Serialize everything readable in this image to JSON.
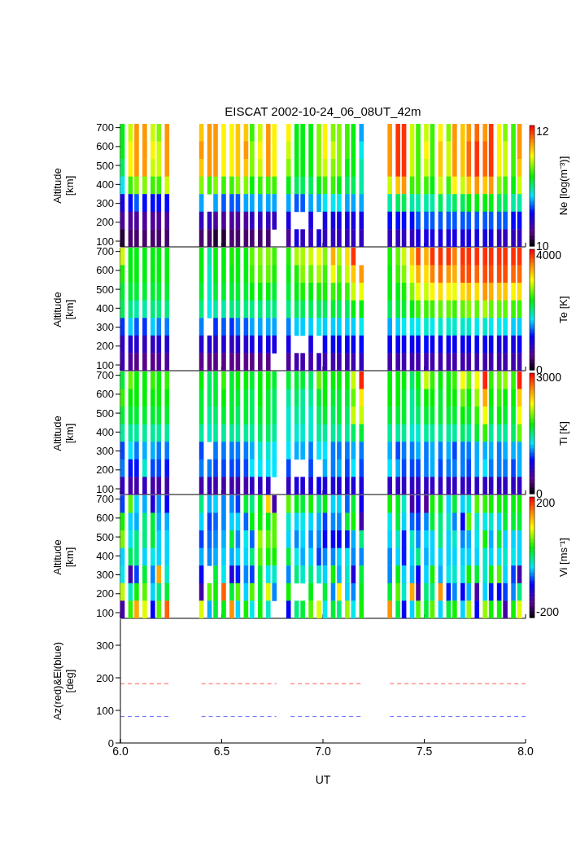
{
  "chart_data": [
    {
      "type": "heatmap",
      "title": "EISCAT 2002-10-24_06_08UT_42m",
      "ylabel": "Altitude [km]",
      "clabel": "Ne [log(m⁻³)]",
      "tick_labels": "y",
      "xlim": [
        6,
        8
      ],
      "xticks": [
        6,
        6.5,
        7,
        7.5,
        8
      ],
      "ylim": [
        70,
        720
      ],
      "yticks": [
        100,
        200,
        300,
        400,
        500,
        600,
        700
      ],
      "clim": [
        10,
        12.1
      ],
      "cticks": [
        10,
        12
      ],
      "x": [
        6.01,
        6.05,
        6.08,
        6.12,
        6.16,
        6.19,
        6.23,
        6.26,
        6.3,
        6.33,
        6.37,
        6.4,
        6.44,
        6.47,
        6.51,
        6.55,
        6.58,
        6.62,
        6.65,
        6.69,
        6.73,
        6.76,
        6.8,
        6.83,
        6.87,
        6.9,
        6.94,
        6.98,
        7.01,
        7.05,
        7.08,
        7.12,
        7.15,
        7.19,
        7.22,
        7.26,
        7.29,
        7.33,
        7.37,
        7.4,
        7.44,
        7.47,
        7.51,
        7.54,
        7.58,
        7.62,
        7.65,
        7.69,
        7.72,
        7.76,
        7.8,
        7.83,
        7.87,
        7.9,
        7.94,
        7.97
      ],
      "cells": [
        [
          11.2,
          11.5,
          11.8,
          11.8,
          11.5,
          11.4,
          11.8,
          null,
          null,
          null,
          null,
          11.7,
          11.8,
          11.8,
          11.6,
          11.6,
          11.7,
          11.7,
          11.3,
          11.5,
          11.8,
          11.6,
          null,
          11.6,
          11.2,
          11.2,
          11.2,
          11.4,
          11.6,
          11.4,
          11.4,
          11.3,
          11.2,
          10.8,
          null,
          null,
          null,
          11.8,
          12.0,
          12.0,
          11.5,
          11.3,
          11.5,
          11.3,
          11.6,
          11.4,
          11.8,
          11.7,
          11.8,
          11.9,
          11.8,
          12.0,
          11.6,
          11.4,
          11.3,
          11.8
        ],
        [
          11.2,
          11.6,
          11.8,
          11.8,
          11.6,
          11.5,
          11.8,
          null,
          null,
          null,
          null,
          11.8,
          11.8,
          11.8,
          11.6,
          11.6,
          11.7,
          11.8,
          11.4,
          11.6,
          11.8,
          11.6,
          null,
          11.5,
          11.2,
          11.2,
          11.2,
          11.4,
          11.6,
          11.5,
          11.4,
          11.3,
          11.2,
          10.9,
          null,
          null,
          null,
          11.8,
          12.0,
          12.0,
          11.5,
          11.3,
          11.6,
          11.3,
          11.7,
          11.5,
          11.8,
          11.7,
          11.9,
          12.0,
          11.9,
          12.0,
          11.6,
          11.5,
          11.3,
          11.8
        ],
        [
          11.1,
          11.6,
          11.8,
          11.8,
          11.5,
          11.5,
          11.8,
          null,
          null,
          null,
          null,
          11.7,
          11.8,
          11.8,
          11.6,
          11.6,
          11.7,
          11.7,
          11.4,
          11.5,
          11.8,
          11.6,
          null,
          11.4,
          11.2,
          11.2,
          11.2,
          11.4,
          11.5,
          11.4,
          11.4,
          11.2,
          11.2,
          11.0,
          null,
          null,
          null,
          11.8,
          12.0,
          12.0,
          11.5,
          11.3,
          11.5,
          11.3,
          11.7,
          11.5,
          11.8,
          11.7,
          11.9,
          12.0,
          11.9,
          12.0,
          11.6,
          11.5,
          11.3,
          11.7
        ],
        [
          10.9,
          11.3,
          11.4,
          11.4,
          11.3,
          11.3,
          11.5,
          null,
          null,
          null,
          null,
          11.4,
          11.3,
          11.4,
          11.3,
          11.3,
          11.4,
          11.4,
          11.2,
          11.3,
          11.3,
          11.3,
          null,
          11.2,
          11.1,
          11.1,
          11.1,
          11.2,
          11.3,
          11.3,
          11.2,
          11.1,
          11.1,
          11.0,
          null,
          null,
          null,
          11.5,
          11.7,
          11.8,
          11.3,
          11.3,
          11.3,
          11.2,
          11.5,
          11.3,
          11.6,
          11.5,
          11.7,
          11.8,
          11.7,
          11.8,
          11.4,
          11.3,
          11.2,
          11.5
        ],
        [
          10.5,
          10.6,
          10.7,
          10.6,
          10.6,
          10.6,
          10.6,
          null,
          null,
          null,
          null,
          10.8,
          null,
          10.8,
          10.7,
          10.7,
          10.7,
          10.8,
          10.8,
          10.8,
          10.8,
          10.8,
          null,
          10.8,
          10.7,
          10.7,
          10.8,
          10.8,
          10.9,
          10.9,
          10.9,
          10.8,
          10.8,
          10.8,
          null,
          null,
          null,
          11.0,
          11.1,
          11.1,
          11.0,
          11.0,
          11.0,
          11.0,
          11.1,
          11.0,
          11.1,
          11.1,
          11.2,
          11.2,
          11.2,
          11.2,
          11.1,
          11.1,
          11.0,
          11.0
        ],
        [
          10.3,
          10.3,
          10.3,
          10.3,
          10.3,
          10.3,
          10.3,
          null,
          null,
          null,
          null,
          10.4,
          10.4,
          10.3,
          10.3,
          10.3,
          10.3,
          10.3,
          10.4,
          10.4,
          10.4,
          10.4,
          null,
          10.5,
          null,
          null,
          10.5,
          null,
          10.5,
          10.5,
          10.5,
          10.5,
          10.5,
          10.5,
          null,
          null,
          null,
          10.6,
          10.6,
          10.6,
          10.6,
          10.7,
          10.7,
          10.7,
          10.7,
          10.7,
          10.7,
          10.7,
          10.7,
          10.7,
          10.7,
          10.7,
          10.7,
          10.7,
          10.6,
          10.6
        ],
        [
          10.1,
          10.2,
          10.2,
          10.2,
          10.2,
          10.2,
          10.2,
          null,
          null,
          null,
          null,
          10.2,
          10.2,
          10.1,
          10.1,
          10.2,
          10.2,
          10.2,
          10.2,
          10.2,
          10.2,
          null,
          null,
          10.3,
          10.5,
          10.4,
          10.4,
          10.5,
          10.4,
          10.4,
          10.4,
          10.4,
          10.4,
          10.4,
          null,
          null,
          null,
          10.4,
          10.4,
          10.4,
          10.4,
          10.5,
          10.5,
          10.5,
          10.5,
          10.5,
          10.5,
          10.5,
          10.5,
          10.5,
          10.5,
          10.5,
          10.4,
          10.4,
          10.4,
          10.4
        ]
      ]
    },
    {
      "type": "heatmap",
      "ylabel": "Altitude [km]",
      "clabel": "Te [K]",
      "tick_labels": "y",
      "xlim": [
        6,
        8
      ],
      "xticks": [
        6,
        6.5,
        7,
        7.5,
        8
      ],
      "ylim": [
        70,
        720
      ],
      "yticks": [
        100,
        200,
        300,
        400,
        500,
        600,
        700
      ],
      "clim": [
        0,
        4200
      ],
      "cticks": [
        0,
        4000
      ],
      "x": [
        6.01,
        6.05,
        6.08,
        6.12,
        6.16,
        6.19,
        6.23,
        6.26,
        6.3,
        6.33,
        6.37,
        6.4,
        6.44,
        6.47,
        6.51,
        6.55,
        6.58,
        6.62,
        6.65,
        6.69,
        6.73,
        6.76,
        6.8,
        6.83,
        6.87,
        6.9,
        6.94,
        6.98,
        7.01,
        7.05,
        7.08,
        7.12,
        7.15,
        7.19,
        7.22,
        7.26,
        7.29,
        7.33,
        7.37,
        7.4,
        7.44,
        7.47,
        7.51,
        7.54,
        7.58,
        7.62,
        7.65,
        7.69,
        7.72,
        7.76,
        7.8,
        7.83,
        7.87,
        7.9,
        7.94,
        7.97
      ],
      "cells": [
        [
          3000,
          2400,
          2400,
          2400,
          2400,
          2400,
          2400,
          null,
          null,
          null,
          null,
          2400,
          2000,
          2400,
          2400,
          2500,
          2400,
          2400,
          2700,
          2800,
          2800,
          2600,
          null,
          2500,
          2900,
          2900,
          3000,
          3100,
          2800,
          3500,
          2900,
          3300,
          4000,
          null,
          null,
          null,
          null,
          2500,
          2700,
          3000,
          3400,
          3900,
          3500,
          4000,
          4000,
          4000,
          3700,
          4000,
          4000,
          4000,
          4000,
          4000,
          4000,
          4000,
          4000,
          4000
        ],
        [
          2500,
          2400,
          2400,
          2400,
          2400,
          2400,
          2400,
          null,
          null,
          null,
          null,
          2400,
          1900,
          2400,
          2400,
          2400,
          2400,
          2400,
          2600,
          2700,
          2700,
          2500,
          null,
          2400,
          2500,
          2800,
          2700,
          2900,
          2600,
          3100,
          2700,
          3000,
          3400,
          3600,
          null,
          null,
          null,
          2400,
          2600,
          2800,
          3100,
          3500,
          3300,
          3700,
          3800,
          3600,
          3500,
          3900,
          3900,
          3800,
          3900,
          3900,
          3900,
          3900,
          3800,
          3800
        ],
        [
          2300,
          2300,
          2300,
          2300,
          2300,
          2300,
          2300,
          null,
          null,
          null,
          null,
          2300,
          1900,
          2300,
          2300,
          2300,
          2300,
          2300,
          2400,
          2400,
          2400,
          2300,
          null,
          2300,
          2400,
          2500,
          2400,
          2500,
          2500,
          2600,
          2500,
          2600,
          3000,
          3100,
          null,
          null,
          null,
          2400,
          2400,
          2500,
          2800,
          3100,
          3000,
          3200,
          3300,
          3200,
          3100,
          3300,
          3400,
          3300,
          3600,
          3500,
          3400,
          3400,
          3200,
          3300
        ],
        [
          2200,
          2100,
          2000,
          2000,
          2100,
          2100,
          2100,
          null,
          null,
          null,
          null,
          2100,
          1800,
          2000,
          2000,
          2100,
          2100,
          2100,
          2100,
          2100,
          2100,
          2100,
          null,
          2100,
          2200,
          2200,
          2200,
          2200,
          2200,
          2300,
          2200,
          2200,
          2400,
          2400,
          null,
          null,
          null,
          2200,
          2300,
          2300,
          2400,
          2600,
          2600,
          2600,
          2700,
          2700,
          2600,
          2700,
          2800,
          2700,
          2900,
          2700,
          2700,
          2700,
          2600,
          2600
        ],
        [
          1300,
          1700,
          1400,
          1300,
          1700,
          1500,
          1500,
          null,
          null,
          null,
          null,
          1500,
          null,
          1300,
          1400,
          1300,
          1500,
          1400,
          1600,
          1600,
          1600,
          1600,
          null,
          1500,
          1700,
          1700,
          1700,
          1800,
          1700,
          1700,
          1700,
          1700,
          1700,
          1800,
          null,
          null,
          null,
          1600,
          1700,
          1800,
          1800,
          1800,
          1900,
          1800,
          1900,
          1900,
          1900,
          1900,
          1900,
          1800,
          1900,
          1800,
          1800,
          1800,
          1700,
          1700
        ],
        [
          800,
          900,
          900,
          800,
          800,
          900,
          900,
          null,
          null,
          null,
          null,
          900,
          900,
          800,
          900,
          800,
          900,
          900,
          1000,
          1000,
          1000,
          1000,
          null,
          1000,
          null,
          null,
          1000,
          null,
          1100,
          1100,
          1100,
          1100,
          1100,
          1200,
          null,
          null,
          null,
          1100,
          1100,
          1100,
          1100,
          1100,
          1200,
          1100,
          1100,
          1100,
          1100,
          1100,
          1100,
          1100,
          1100,
          1100,
          1000,
          1000,
          1000,
          1100
        ],
        [
          700,
          600,
          500,
          500,
          500,
          600,
          600,
          null,
          null,
          null,
          null,
          500,
          500,
          500,
          500,
          500,
          500,
          500,
          500,
          500,
          500,
          null,
          null,
          600,
          700,
          700,
          700,
          800,
          700,
          700,
          700,
          700,
          700,
          800,
          null,
          null,
          null,
          700,
          700,
          700,
          700,
          700,
          700,
          700,
          700,
          700,
          700,
          700,
          700,
          700,
          700,
          700,
          700,
          700,
          700,
          700
        ]
      ]
    },
    {
      "type": "heatmap",
      "ylabel": "Altitude [km]",
      "clabel": "Ti [K]",
      "tick_labels": "y",
      "xlim": [
        6,
        8
      ],
      "xticks": [
        6,
        6.5,
        7,
        7.5,
        8
      ],
      "ylim": [
        70,
        720
      ],
      "yticks": [
        100,
        200,
        300,
        400,
        500,
        600,
        700
      ],
      "clim": [
        0,
        3100
      ],
      "cticks": [
        0,
        3000
      ],
      "x": [
        6.01,
        6.05,
        6.08,
        6.12,
        6.16,
        6.19,
        6.23,
        6.26,
        6.3,
        6.33,
        6.37,
        6.4,
        6.44,
        6.47,
        6.51,
        6.55,
        6.58,
        6.62,
        6.65,
        6.69,
        6.73,
        6.76,
        6.8,
        6.83,
        6.87,
        6.9,
        6.94,
        6.98,
        7.01,
        7.05,
        7.08,
        7.12,
        7.15,
        7.19,
        7.22,
        7.26,
        7.29,
        7.33,
        7.37,
        7.4,
        7.44,
        7.47,
        7.51,
        7.54,
        7.58,
        7.62,
        7.65,
        7.69,
        7.72,
        7.76,
        7.8,
        7.83,
        7.87,
        7.9,
        7.94,
        7.97
      ],
      "cells": [
        [
          1700,
          2000,
          1800,
          1800,
          1900,
          1800,
          1900,
          null,
          null,
          null,
          null,
          1800,
          1600,
          1700,
          1900,
          1700,
          1800,
          1800,
          1700,
          1800,
          1800,
          1700,
          null,
          1700,
          1700,
          1700,
          1600,
          2000,
          1800,
          1800,
          1800,
          1800,
          2200,
          3000,
          null,
          null,
          null,
          1800,
          1800,
          1800,
          1600,
          1800,
          2200,
          1900,
          1800,
          1800,
          1900,
          2300,
          2000,
          2300,
          3000,
          1900,
          2000,
          2100,
          1900,
          3000
        ],
        [
          1900,
          1800,
          1800,
          1800,
          1800,
          1800,
          1800,
          null,
          null,
          null,
          null,
          1700,
          1600,
          1700,
          1800,
          1700,
          1700,
          1700,
          1600,
          1800,
          1700,
          1600,
          null,
          1500,
          1600,
          1500,
          1500,
          1700,
          1800,
          1700,
          1700,
          1700,
          2000,
          2400,
          null,
          null,
          null,
          1800,
          1800,
          1700,
          1500,
          1700,
          1800,
          1800,
          1700,
          1800,
          1800,
          2000,
          1800,
          2100,
          2600,
          1800,
          1900,
          1800,
          1800,
          2500
        ],
        [
          1700,
          1700,
          1700,
          1700,
          1700,
          1700,
          1700,
          null,
          null,
          null,
          null,
          1700,
          1500,
          1600,
          1700,
          1700,
          1600,
          1700,
          1600,
          1700,
          1700,
          1600,
          null,
          1400,
          1500,
          1500,
          1400,
          1600,
          1700,
          1600,
          1700,
          1600,
          2200,
          2200,
          null,
          null,
          null,
          1700,
          1700,
          1700,
          1500,
          1600,
          1700,
          1700,
          1700,
          1700,
          1700,
          1800,
          1700,
          1900,
          2300,
          1700,
          1800,
          1700,
          1700,
          2300
        ],
        [
          1500,
          1500,
          1500,
          1500,
          1500,
          1500,
          1500,
          null,
          null,
          null,
          null,
          1500,
          1400,
          1500,
          1500,
          1500,
          1500,
          1500,
          1500,
          1600,
          1600,
          1500,
          null,
          1400,
          1400,
          1400,
          1400,
          1500,
          1500,
          1500,
          1500,
          1500,
          1600,
          1700,
          null,
          null,
          null,
          1500,
          1500,
          1500,
          1400,
          1400,
          1500,
          1500,
          1500,
          1500,
          1500,
          1600,
          1500,
          1700,
          1900,
          1500,
          1500,
          1500,
          1600,
          2000
        ],
        [
          1000,
          1300,
          1100,
          1200,
          1200,
          1100,
          1100,
          null,
          null,
          null,
          null,
          1000,
          null,
          1100,
          1100,
          1100,
          1100,
          1100,
          1200,
          1400,
          1400,
          1300,
          null,
          1300,
          1200,
          1200,
          1100,
          1300,
          1300,
          1100,
          1100,
          1100,
          1200,
          1100,
          null,
          null,
          null,
          1200,
          1000,
          1100,
          1100,
          1200,
          1100,
          1200,
          1100,
          1200,
          1000,
          1100,
          1100,
          1200,
          1200,
          1200,
          1100,
          1200,
          1200,
          1200
        ],
        [
          1100,
          900,
          900,
          1400,
          1000,
          1000,
          900,
          null,
          null,
          null,
          null,
          1100,
          1100,
          1000,
          1000,
          1000,
          1000,
          1000,
          1300,
          1300,
          1300,
          1300,
          null,
          1000,
          null,
          null,
          1000,
          null,
          1200,
          1100,
          1200,
          1000,
          1300,
          1000,
          null,
          null,
          null,
          1300,
          1200,
          1000,
          1000,
          1000,
          1100,
          1200,
          1000,
          1100,
          1100,
          1100,
          1000,
          1200,
          1300,
          1100,
          1100,
          1100,
          1000,
          1200
        ],
        [
          600,
          500,
          500,
          600,
          500,
          500,
          500,
          null,
          null,
          null,
          null,
          500,
          600,
          500,
          500,
          500,
          500,
          500,
          600,
          600,
          600,
          null,
          null,
          600,
          700,
          700,
          700,
          800,
          700,
          700,
          700,
          700,
          700,
          700,
          null,
          null,
          null,
          600,
          600,
          600,
          600,
          600,
          600,
          600,
          600,
          600,
          600,
          600,
          600,
          600,
          600,
          600,
          600,
          600,
          600,
          600
        ]
      ]
    },
    {
      "type": "heatmap",
      "ylabel": "Altitude [km]",
      "clabel": "Vi [ms⁻¹]",
      "tick_labels": "y",
      "xlim": [
        6,
        8
      ],
      "xticks": [
        6,
        6.5,
        7,
        7.5,
        8
      ],
      "ylim": [
        70,
        720
      ],
      "yticks": [
        100,
        200,
        300,
        400,
        500,
        600,
        700
      ],
      "clim": [
        -220,
        220
      ],
      "cticks": [
        -200,
        200
      ],
      "x": [
        6.01,
        6.05,
        6.08,
        6.12,
        6.16,
        6.19,
        6.23,
        6.26,
        6.3,
        6.33,
        6.37,
        6.4,
        6.44,
        6.47,
        6.51,
        6.55,
        6.58,
        6.62,
        6.65,
        6.69,
        6.73,
        6.76,
        6.8,
        6.83,
        6.87,
        6.9,
        6.94,
        6.98,
        7.01,
        7.05,
        7.08,
        7.12,
        7.15,
        7.19,
        7.22,
        7.26,
        7.29,
        7.33,
        7.37,
        7.4,
        7.44,
        7.47,
        7.51,
        7.54,
        7.58,
        7.62,
        7.65,
        7.69,
        7.72,
        7.76,
        7.8,
        7.83,
        7.87,
        7.9,
        7.94,
        7.97
      ],
      "cells": [
        [
          -80,
          60,
          -40,
          -50,
          -120,
          -60,
          -100,
          null,
          null,
          null,
          null,
          0,
          -50,
          -40,
          -60,
          -60,
          -80,
          20,
          0,
          30,
          130,
          -150,
          null,
          60,
          30,
          20,
          40,
          0,
          30,
          -40,
          -40,
          -70,
          20,
          -110,
          null,
          null,
          null,
          40,
          30,
          -20,
          -150,
          -120,
          -160,
          40,
          30,
          -40,
          20,
          -40,
          -20,
          60,
          50,
          40,
          40,
          30,
          30,
          40
        ],
        [
          40,
          -40,
          -50,
          0,
          20,
          -50,
          -50,
          null,
          null,
          null,
          null,
          -40,
          -80,
          -70,
          -60,
          -40,
          -40,
          -70,
          30,
          40,
          30,
          60,
          null,
          -20,
          -40,
          -30,
          -40,
          -50,
          -80,
          -60,
          -60,
          20,
          40,
          -150,
          null,
          null,
          null,
          -30,
          20,
          -40,
          -70,
          -80,
          -60,
          20,
          0,
          -20,
          -60,
          -100,
          60,
          -20,
          -30,
          -20,
          -40,
          20,
          20,
          20
        ],
        [
          70,
          -30,
          0,
          0,
          20,
          -40,
          -40,
          null,
          null,
          null,
          null,
          -80,
          -70,
          -60,
          -50,
          20,
          -60,
          -30,
          -70,
          80,
          60,
          60,
          null,
          -40,
          -60,
          -40,
          -60,
          -60,
          -100,
          -100,
          -100,
          -90,
          -50,
          0,
          null,
          null,
          null,
          -40,
          -20,
          -90,
          -20,
          -60,
          -40,
          -40,
          0,
          -40,
          -20,
          -60,
          -50,
          -30,
          40,
          -50,
          20,
          -40,
          -40,
          -40
        ],
        [
          -40,
          10,
          0,
          -40,
          -30,
          -40,
          -40,
          null,
          null,
          null,
          null,
          -50,
          -60,
          -50,
          -40,
          -50,
          -40,
          -40,
          0,
          60,
          40,
          40,
          null,
          20,
          -30,
          -50,
          -40,
          -80,
          -60,
          -60,
          -40,
          -30,
          -60,
          -60,
          null,
          null,
          null,
          -60,
          -40,
          -90,
          -40,
          0,
          -50,
          -40,
          -40,
          -40,
          -40,
          -40,
          -40,
          -40,
          -20,
          -40,
          -30,
          -20,
          -30,
          -40
        ],
        [
          -30,
          -150,
          -80,
          20,
          -60,
          150,
          -20,
          null,
          null,
          null,
          null,
          -100,
          null,
          20,
          -30,
          -120,
          -90,
          -60,
          -80,
          20,
          -30,
          -20,
          null,
          -60,
          0,
          -20,
          0,
          -20,
          -40,
          40,
          -50,
          -20,
          -120,
          20,
          null,
          null,
          null,
          -60,
          30,
          -40,
          -50,
          -100,
          -40,
          40,
          -50,
          -30,
          -20,
          -30,
          40,
          20,
          -20,
          40,
          60,
          -40,
          -80,
          -150
        ],
        [
          90,
          -20,
          40,
          60,
          -40,
          0,
          20,
          null,
          null,
          null,
          null,
          -150,
          60,
          40,
          180,
          20,
          60,
          -40,
          60,
          20,
          100,
          -60,
          null,
          40,
          null,
          null,
          30,
          null,
          20,
          -60,
          120,
          -40,
          -60,
          30,
          null,
          null,
          null,
          20,
          60,
          -20,
          150,
          -150,
          0,
          0,
          160,
          -90,
          -60,
          -100,
          -50,
          -150,
          -40,
          -90,
          -100,
          -80,
          -60,
          0
        ],
        [
          -150,
          50,
          150,
          100,
          -100,
          60,
          180,
          null,
          null,
          null,
          null,
          100,
          -50,
          20,
          30,
          160,
          -40,
          40,
          -30,
          40,
          -20,
          null,
          null,
          -100,
          0,
          20,
          60,
          100,
          -30,
          20,
          0,
          80,
          -30,
          40,
          null,
          null,
          null,
          160,
          20,
          -100,
          -40,
          60,
          20,
          60,
          -40,
          20,
          40,
          -40,
          80,
          -100,
          80,
          40,
          40,
          -150,
          40,
          100
        ]
      ]
    },
    {
      "type": "line",
      "xlabel": "UT",
      "ylabel": "Az(red)&El(blue) [deg]",
      "xlim": [
        6,
        8
      ],
      "xticks": [
        {
          "value": 6,
          "label": "6.0"
        },
        6.5,
        {
          "value": 7,
          "label": "7.0"
        },
        7.5,
        {
          "value": 8,
          "label": "8.0"
        }
      ],
      "ylim": [
        0,
        380
      ],
      "yticks": [
        0,
        100,
        200,
        300
      ],
      "line_style": "dashed",
      "series": [
        {
          "color": "#ff5a50",
          "x": [
            6.0,
            6.24,
            6.32,
            6.4,
            6.77,
            6.8,
            6.84,
            7.2,
            7.26,
            7.33,
            8.0
          ],
          "values": [
            182,
            182,
            null,
            182,
            182,
            null,
            182,
            182,
            null,
            182,
            182
          ]
        },
        {
          "color": "#6a6aff",
          "x": [
            6.0,
            6.24,
            6.32,
            6.4,
            6.77,
            6.8,
            6.84,
            7.2,
            7.26,
            7.33,
            8.0
          ],
          "values": [
            81,
            81,
            null,
            81,
            81,
            null,
            81,
            81,
            null,
            81,
            81
          ]
        }
      ]
    }
  ]
}
